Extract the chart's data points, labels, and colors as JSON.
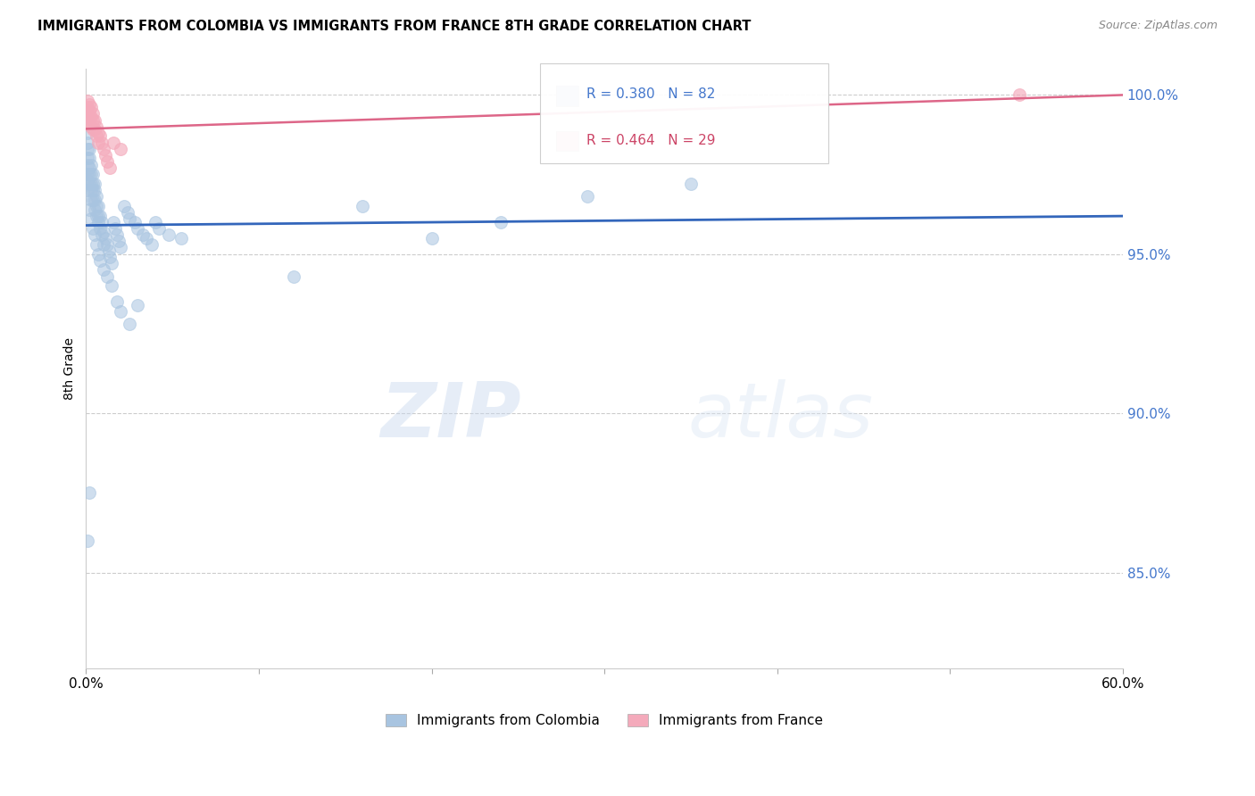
{
  "title": "IMMIGRANTS FROM COLOMBIA VS IMMIGRANTS FROM FRANCE 8TH GRADE CORRELATION CHART",
  "source": "Source: ZipAtlas.com",
  "ylabel": "8th Grade",
  "yaxis_labels": [
    "100.0%",
    "95.0%",
    "90.0%",
    "85.0%"
  ],
  "yaxis_values": [
    1.0,
    0.95,
    0.9,
    0.85
  ],
  "R_colombia": 0.38,
  "N_colombia": 82,
  "R_france": 0.464,
  "N_france": 29,
  "colombia_color": "#A8C4E0",
  "france_color": "#F4AABB",
  "colombia_line_color": "#3366BB",
  "france_line_color": "#DD6688",
  "background_color": "#ffffff",
  "grid_color": "#CCCCCC",
  "watermark_color": "#D0DFF0",
  "right_axis_color": "#4477CC",
  "xlim": [
    0.0,
    0.6
  ],
  "ylim": [
    0.82,
    1.008
  ],
  "colombia_x": [
    0.001,
    0.001,
    0.001,
    0.001,
    0.001,
    0.001,
    0.001,
    0.001,
    0.002,
    0.002,
    0.002,
    0.002,
    0.002,
    0.003,
    0.003,
    0.003,
    0.003,
    0.003,
    0.004,
    0.004,
    0.004,
    0.004,
    0.005,
    0.005,
    0.005,
    0.005,
    0.006,
    0.006,
    0.006,
    0.007,
    0.007,
    0.007,
    0.008,
    0.008,
    0.009,
    0.009,
    0.01,
    0.01,
    0.011,
    0.012,
    0.013,
    0.014,
    0.015,
    0.016,
    0.017,
    0.018,
    0.019,
    0.02,
    0.022,
    0.024,
    0.025,
    0.028,
    0.03,
    0.033,
    0.035,
    0.038,
    0.04,
    0.042,
    0.048,
    0.055,
    0.002,
    0.003,
    0.004,
    0.005,
    0.006,
    0.007,
    0.008,
    0.01,
    0.012,
    0.015,
    0.018,
    0.02,
    0.025,
    0.03,
    0.12,
    0.16,
    0.2,
    0.24,
    0.29,
    0.35,
    0.001,
    0.002
  ],
  "colombia_y": [
    0.988,
    0.985,
    0.983,
    0.98,
    0.978,
    0.975,
    0.973,
    0.97,
    0.983,
    0.98,
    0.977,
    0.975,
    0.972,
    0.978,
    0.975,
    0.972,
    0.97,
    0.967,
    0.975,
    0.972,
    0.97,
    0.967,
    0.972,
    0.97,
    0.967,
    0.964,
    0.968,
    0.965,
    0.962,
    0.965,
    0.962,
    0.96,
    0.962,
    0.958,
    0.96,
    0.956,
    0.957,
    0.953,
    0.955,
    0.953,
    0.951,
    0.949,
    0.947,
    0.96,
    0.958,
    0.956,
    0.954,
    0.952,
    0.965,
    0.963,
    0.961,
    0.96,
    0.958,
    0.956,
    0.955,
    0.953,
    0.96,
    0.958,
    0.956,
    0.955,
    0.964,
    0.961,
    0.958,
    0.956,
    0.953,
    0.95,
    0.948,
    0.945,
    0.943,
    0.94,
    0.935,
    0.932,
    0.928,
    0.934,
    0.943,
    0.965,
    0.955,
    0.96,
    0.968,
    0.972,
    0.86,
    0.875
  ],
  "france_x": [
    0.001,
    0.001,
    0.001,
    0.001,
    0.002,
    0.002,
    0.002,
    0.002,
    0.003,
    0.003,
    0.003,
    0.004,
    0.004,
    0.004,
    0.005,
    0.005,
    0.006,
    0.006,
    0.007,
    0.007,
    0.008,
    0.009,
    0.01,
    0.011,
    0.012,
    0.014,
    0.016,
    0.02,
    0.54
  ],
  "france_y": [
    0.998,
    0.996,
    0.994,
    0.992,
    0.997,
    0.995,
    0.993,
    0.991,
    0.996,
    0.993,
    0.99,
    0.994,
    0.992,
    0.989,
    0.992,
    0.989,
    0.99,
    0.987,
    0.988,
    0.985,
    0.987,
    0.985,
    0.983,
    0.981,
    0.979,
    0.977,
    0.985,
    0.983,
    1.0
  ]
}
